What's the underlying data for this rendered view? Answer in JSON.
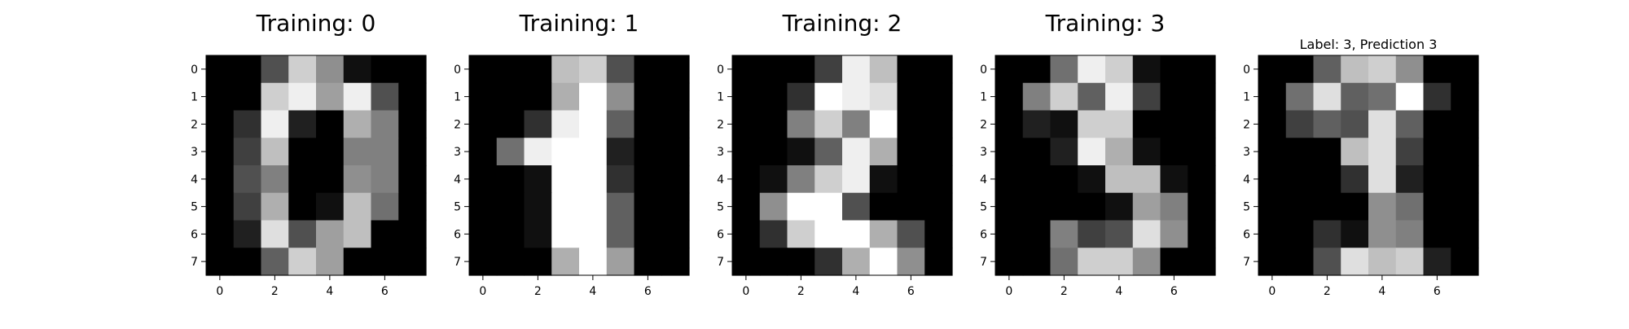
{
  "chart_data": [
    {
      "type": "heatmap",
      "title": "Training: 0",
      "colormap": "gray",
      "value_range": [
        0,
        16
      ],
      "x_ticks": [
        "0",
        "2",
        "4",
        "6"
      ],
      "y_ticks": [
        "0",
        "1",
        "2",
        "3",
        "4",
        "5",
        "6",
        "7"
      ],
      "grid": false,
      "values": [
        [
          0,
          0,
          5,
          13,
          9,
          1,
          0,
          0
        ],
        [
          0,
          0,
          13,
          15,
          10,
          15,
          5,
          0
        ],
        [
          0,
          3,
          15,
          2,
          0,
          11,
          8,
          0
        ],
        [
          0,
          4,
          12,
          0,
          0,
          8,
          8,
          0
        ],
        [
          0,
          5,
          8,
          0,
          0,
          9,
          8,
          0
        ],
        [
          0,
          4,
          11,
          0,
          1,
          12,
          7,
          0
        ],
        [
          0,
          2,
          14,
          5,
          10,
          12,
          0,
          0
        ],
        [
          0,
          0,
          6,
          13,
          10,
          0,
          0,
          0
        ]
      ]
    },
    {
      "type": "heatmap",
      "title": "Training: 1",
      "colormap": "gray",
      "value_range": [
        0,
        16
      ],
      "x_ticks": [
        "0",
        "2",
        "4",
        "6"
      ],
      "y_ticks": [
        "0",
        "1",
        "2",
        "3",
        "4",
        "5",
        "6",
        "7"
      ],
      "grid": false,
      "values": [
        [
          0,
          0,
          0,
          12,
          13,
          5,
          0,
          0
        ],
        [
          0,
          0,
          0,
          11,
          16,
          9,
          0,
          0
        ],
        [
          0,
          0,
          3,
          15,
          16,
          6,
          0,
          0
        ],
        [
          0,
          7,
          15,
          16,
          16,
          2,
          0,
          0
        ],
        [
          0,
          0,
          1,
          16,
          16,
          3,
          0,
          0
        ],
        [
          0,
          0,
          1,
          16,
          16,
          6,
          0,
          0
        ],
        [
          0,
          0,
          1,
          16,
          16,
          6,
          0,
          0
        ],
        [
          0,
          0,
          0,
          11,
          16,
          10,
          0,
          0
        ]
      ]
    },
    {
      "type": "heatmap",
      "title": "Training: 2",
      "colormap": "gray",
      "value_range": [
        0,
        16
      ],
      "x_ticks": [
        "0",
        "2",
        "4",
        "6"
      ],
      "y_ticks": [
        "0",
        "1",
        "2",
        "3",
        "4",
        "5",
        "6",
        "7"
      ],
      "grid": false,
      "values": [
        [
          0,
          0,
          0,
          4,
          15,
          12,
          0,
          0
        ],
        [
          0,
          0,
          3,
          16,
          15,
          14,
          0,
          0
        ],
        [
          0,
          0,
          8,
          13,
          8,
          16,
          0,
          0
        ],
        [
          0,
          0,
          1,
          6,
          15,
          11,
          0,
          0
        ],
        [
          0,
          1,
          8,
          13,
          15,
          1,
          0,
          0
        ],
        [
          0,
          9,
          16,
          16,
          5,
          0,
          0,
          0
        ],
        [
          0,
          3,
          13,
          16,
          16,
          11,
          5,
          0
        ],
        [
          0,
          0,
          0,
          3,
          11,
          16,
          9,
          0
        ]
      ]
    },
    {
      "type": "heatmap",
      "title": "Training: 3",
      "colormap": "gray",
      "value_range": [
        0,
        16
      ],
      "x_ticks": [
        "0",
        "2",
        "4",
        "6"
      ],
      "y_ticks": [
        "0",
        "1",
        "2",
        "3",
        "4",
        "5",
        "6",
        "7"
      ],
      "grid": false,
      "values": [
        [
          0,
          0,
          7,
          15,
          13,
          1,
          0,
          0
        ],
        [
          0,
          8,
          13,
          6,
          15,
          4,
          0,
          0
        ],
        [
          0,
          2,
          1,
          13,
          13,
          0,
          0,
          0
        ],
        [
          0,
          0,
          2,
          15,
          11,
          1,
          0,
          0
        ],
        [
          0,
          0,
          0,
          1,
          12,
          12,
          1,
          0
        ],
        [
          0,
          0,
          0,
          0,
          1,
          10,
          8,
          0
        ],
        [
          0,
          0,
          8,
          4,
          5,
          14,
          9,
          0
        ],
        [
          0,
          0,
          7,
          13,
          13,
          9,
          0,
          0
        ]
      ]
    },
    {
      "type": "heatmap",
      "title": "Label: 3, Prediction 3",
      "colormap": "gray",
      "value_range": [
        0,
        16
      ],
      "x_ticks": [
        "0",
        "2",
        "4",
        "6"
      ],
      "y_ticks": [
        "0",
        "1",
        "2",
        "3",
        "4",
        "5",
        "6",
        "7"
      ],
      "grid": false,
      "values": [
        [
          0,
          0,
          6,
          12,
          13,
          9,
          0,
          0
        ],
        [
          0,
          7,
          14,
          6,
          7,
          16,
          3,
          0
        ],
        [
          0,
          4,
          6,
          5,
          14,
          6,
          0,
          0
        ],
        [
          0,
          0,
          0,
          12,
          14,
          4,
          0,
          0
        ],
        [
          0,
          0,
          0,
          3,
          14,
          2,
          0,
          0
        ],
        [
          0,
          0,
          0,
          0,
          9,
          7,
          0,
          0
        ],
        [
          0,
          0,
          3,
          1,
          9,
          8,
          0,
          0
        ],
        [
          0,
          0,
          5,
          14,
          12,
          13,
          2,
          0
        ]
      ]
    }
  ]
}
